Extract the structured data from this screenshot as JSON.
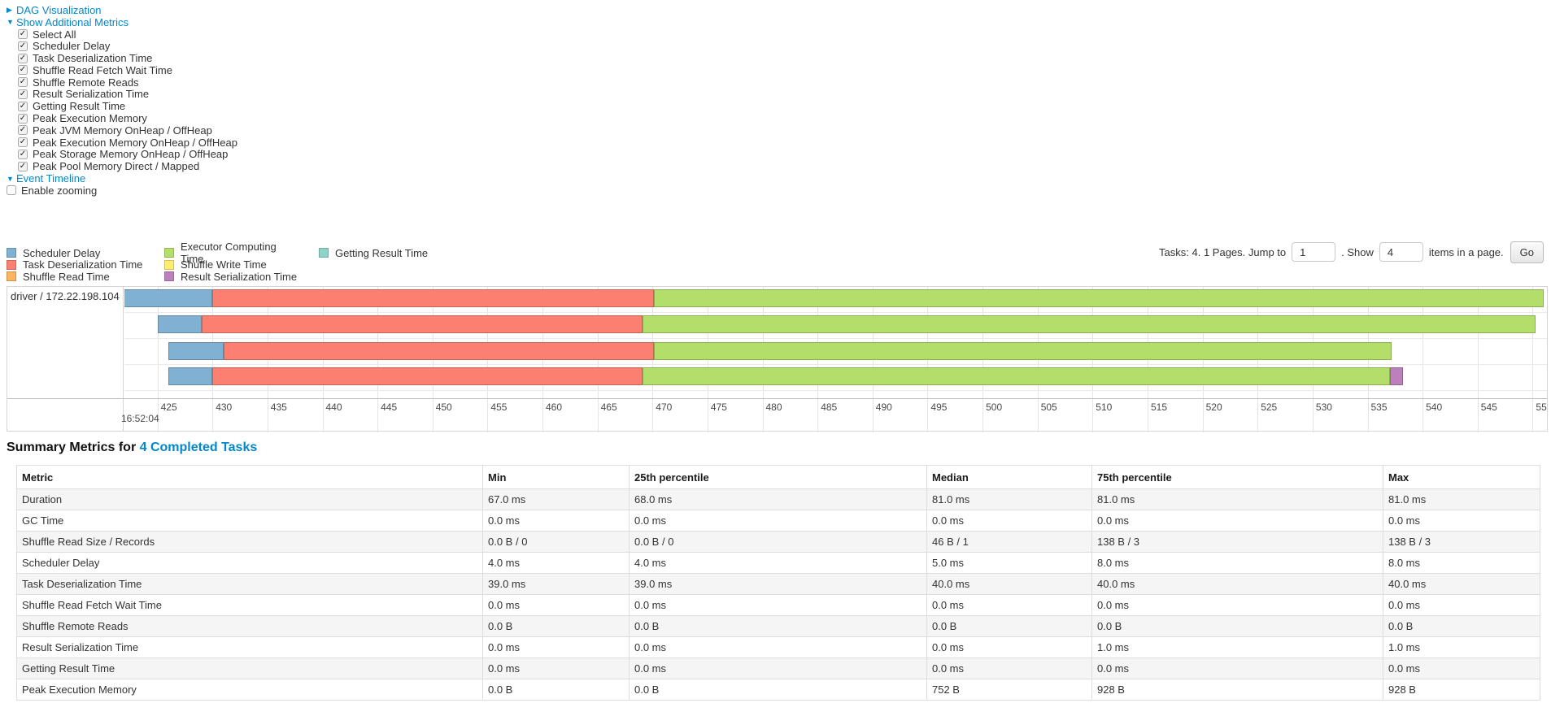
{
  "colors": {
    "link": "#0088cc",
    "scheduler_delay": "#80B1D3",
    "task_deserialization": "#FB8072",
    "shuffle_read": "#FDB462",
    "executor_computing": "#B3DE69",
    "shuffle_write": "#FFED6F",
    "result_serialization": "#BC80BD",
    "getting_result": "#8DD3C7"
  },
  "controls": {
    "dag": {
      "arrow": "▶",
      "label": "DAG Visualization"
    },
    "metrics_toggle": {
      "arrow": "▼",
      "label": "Show Additional Metrics"
    },
    "checkboxes": [
      {
        "label": "Select All",
        "checked": true
      },
      {
        "label": "Scheduler Delay",
        "checked": true
      },
      {
        "label": "Task Deserialization Time",
        "checked": true
      },
      {
        "label": "Shuffle Read Fetch Wait Time",
        "checked": true
      },
      {
        "label": "Shuffle Remote Reads",
        "checked": true
      },
      {
        "label": "Result Serialization Time",
        "checked": true
      },
      {
        "label": "Getting Result Time",
        "checked": true
      },
      {
        "label": "Peak Execution Memory",
        "checked": true
      },
      {
        "label": "Peak JVM Memory OnHeap / OffHeap",
        "checked": true
      },
      {
        "label": "Peak Execution Memory OnHeap / OffHeap",
        "checked": true
      },
      {
        "label": "Peak Storage Memory OnHeap / OffHeap",
        "checked": true
      },
      {
        "label": "Peak Pool Memory Direct / Mapped",
        "checked": true
      }
    ],
    "event_timeline": {
      "arrow": "▼",
      "label": "Event Timeline"
    },
    "enable_zooming": {
      "label": "Enable zooming",
      "checked": false
    }
  },
  "legend": {
    "columns": [
      {
        "items": [
          {
            "label": "Scheduler Delay",
            "color": "scheduler_delay"
          },
          {
            "label": "Task Deserialization Time",
            "color": "task_deserialization"
          },
          {
            "label": "Shuffle Read Time",
            "color": "shuffle_read"
          }
        ]
      },
      {
        "items": [
          {
            "label": "Executor Computing Time",
            "color": "executor_computing"
          },
          {
            "label": "Shuffle Write Time",
            "color": "shuffle_write"
          },
          {
            "label": "Result Serialization Time",
            "color": "result_serialization"
          }
        ]
      },
      {
        "items": [
          {
            "label": "Getting Result Time",
            "color": "getting_result"
          }
        ]
      }
    ]
  },
  "pagination": {
    "tasks_label": "Tasks: 4. 1 Pages. Jump to",
    "jump_value": "1",
    "period_show_label": ". Show",
    "show_value": "4",
    "items_label": "items in a page.",
    "go_label": "Go"
  },
  "chart_data": {
    "type": "timeline",
    "group_label": "driver / 172.22.198.104",
    "axis": {
      "unit": "ms",
      "domain_start": 422,
      "domain_end": 551.3,
      "tick_start": 425,
      "tick_end": 550,
      "tick_step": 5,
      "time_base": "16:52:04"
    },
    "tasks": [
      {
        "name": "task-0",
        "segments": [
          {
            "type": "scheduler_delay",
            "start": 421.9,
            "end": 430.0
          },
          {
            "type": "task_deserialization",
            "start": 430.0,
            "end": 470.1
          },
          {
            "type": "executor_computing",
            "start": 470.1,
            "end": 551.0
          }
        ]
      },
      {
        "name": "task-1",
        "segments": [
          {
            "type": "scheduler_delay",
            "start": 425.0,
            "end": 429.0
          },
          {
            "type": "task_deserialization",
            "start": 429.0,
            "end": 469.1
          },
          {
            "type": "executor_computing",
            "start": 469.1,
            "end": 550.3
          }
        ]
      },
      {
        "name": "task-2",
        "segments": [
          {
            "type": "scheduler_delay",
            "start": 426.0,
            "end": 431.0
          },
          {
            "type": "task_deserialization",
            "start": 431.0,
            "end": 470.1
          },
          {
            "type": "executor_computing",
            "start": 470.1,
            "end": 537.2
          }
        ]
      },
      {
        "name": "task-3",
        "segments": [
          {
            "type": "scheduler_delay",
            "start": 426.0,
            "end": 430.0
          },
          {
            "type": "task_deserialization",
            "start": 430.0,
            "end": 469.1
          },
          {
            "type": "executor_computing",
            "start": 469.1,
            "end": 537.0
          },
          {
            "type": "result_serialization",
            "start": 537.0,
            "end": 538.2
          }
        ]
      }
    ]
  },
  "summary": {
    "heading_prefix": "Summary Metrics for ",
    "heading_link": "4 Completed Tasks",
    "table": {
      "columns": [
        "Metric",
        "Min",
        "25th percentile",
        "Median",
        "75th percentile",
        "Max"
      ],
      "rows": [
        [
          "Duration",
          "67.0 ms",
          "68.0 ms",
          "81.0 ms",
          "81.0 ms",
          "81.0 ms"
        ],
        [
          "GC Time",
          "0.0 ms",
          "0.0 ms",
          "0.0 ms",
          "0.0 ms",
          "0.0 ms"
        ],
        [
          "Shuffle Read Size / Records",
          "0.0 B / 0",
          "0.0 B / 0",
          "46 B / 1",
          "138 B / 3",
          "138 B / 3"
        ],
        [
          "Scheduler Delay",
          "4.0 ms",
          "4.0 ms",
          "5.0 ms",
          "8.0 ms",
          "8.0 ms"
        ],
        [
          "Task Deserialization Time",
          "39.0 ms",
          "39.0 ms",
          "40.0 ms",
          "40.0 ms",
          "40.0 ms"
        ],
        [
          "Shuffle Read Fetch Wait Time",
          "0.0 ms",
          "0.0 ms",
          "0.0 ms",
          "0.0 ms",
          "0.0 ms"
        ],
        [
          "Shuffle Remote Reads",
          "0.0 B",
          "0.0 B",
          "0.0 B",
          "0.0 B",
          "0.0 B"
        ],
        [
          "Result Serialization Time",
          "0.0 ms",
          "0.0 ms",
          "0.0 ms",
          "1.0 ms",
          "1.0 ms"
        ],
        [
          "Getting Result Time",
          "0.0 ms",
          "0.0 ms",
          "0.0 ms",
          "0.0 ms",
          "0.0 ms"
        ],
        [
          "Peak Execution Memory",
          "0.0 B",
          "0.0 B",
          "752 B",
          "928 B",
          "928 B"
        ]
      ]
    }
  }
}
